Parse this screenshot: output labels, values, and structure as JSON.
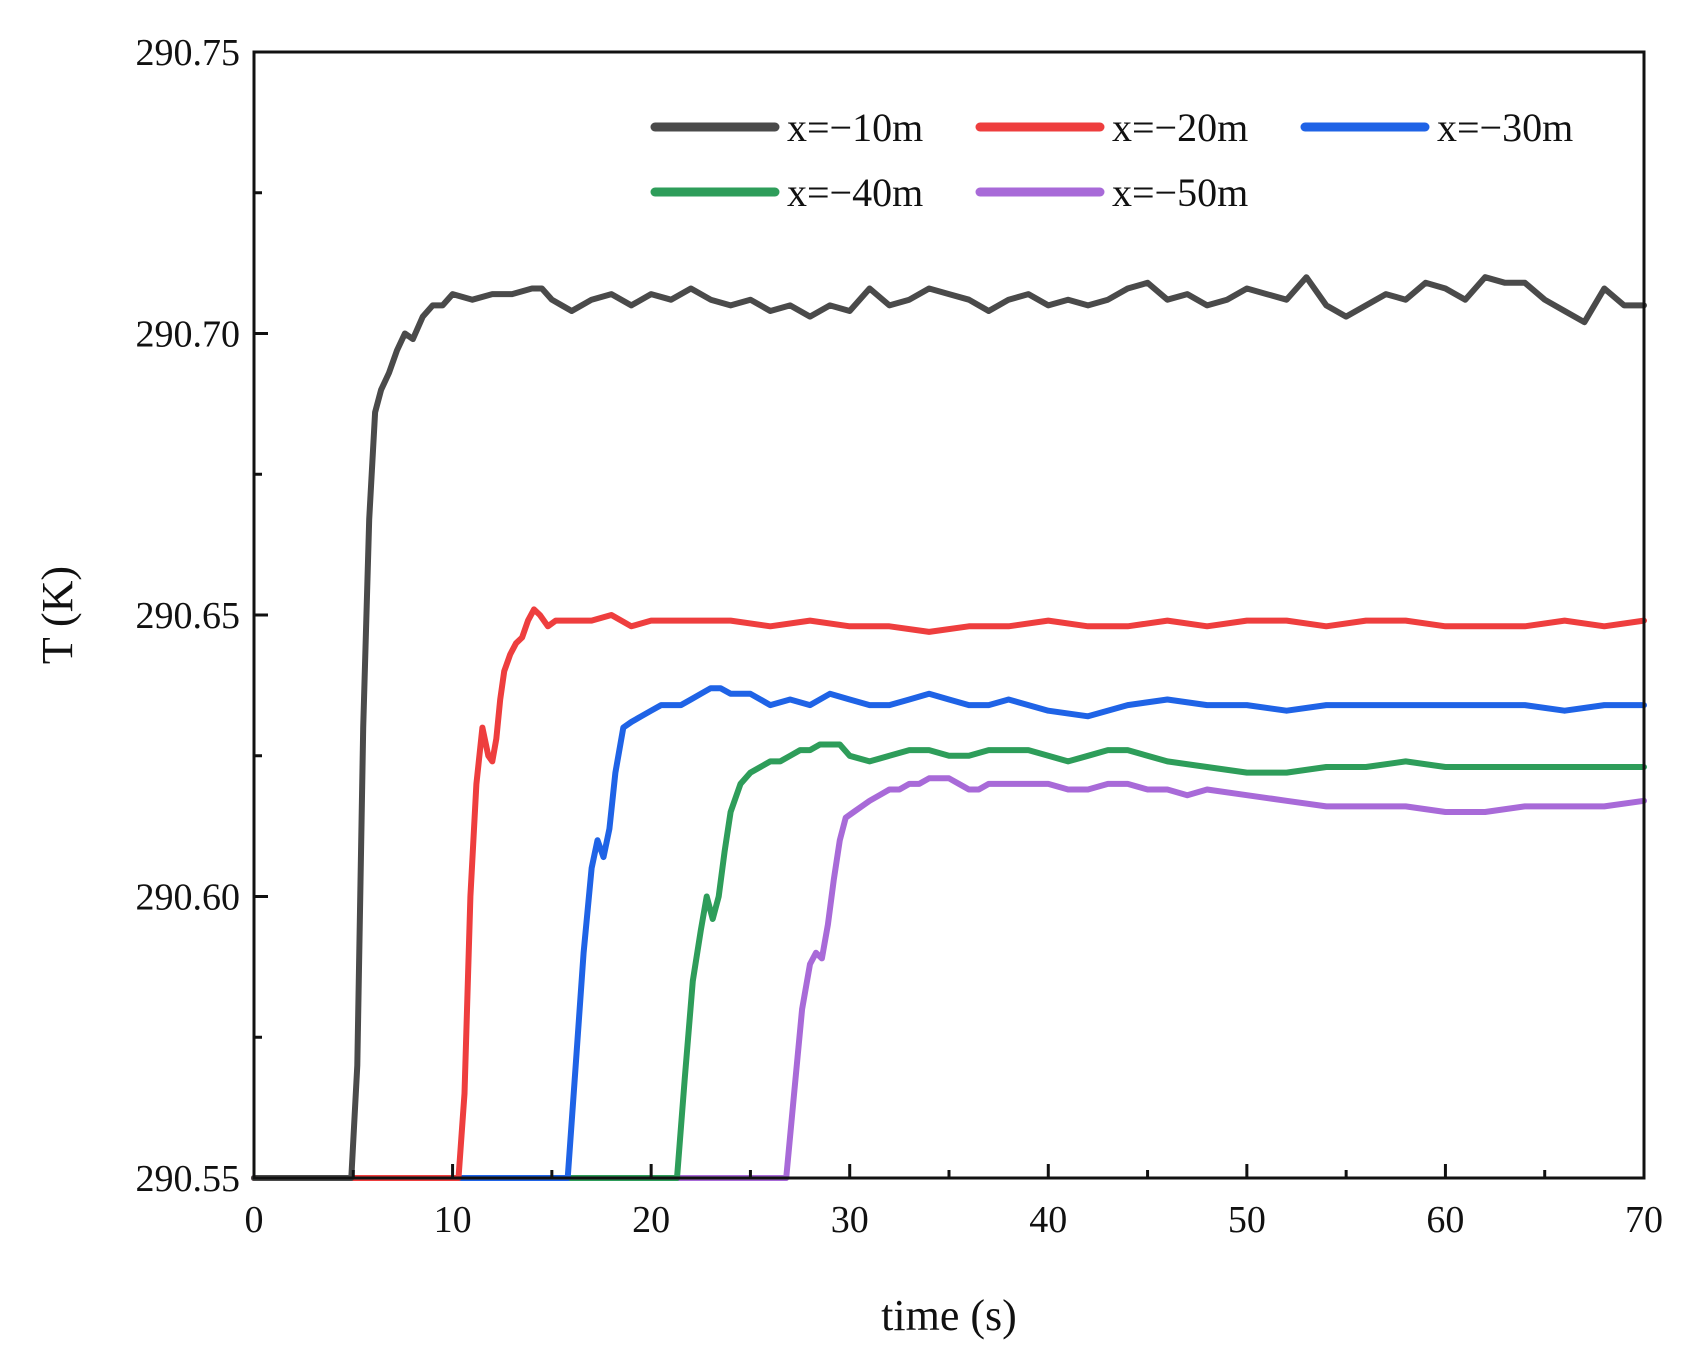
{
  "chart_data": {
    "type": "line",
    "title": "",
    "xlabel": "time (s)",
    "ylabel": "T (K)",
    "xlim": [
      0,
      70
    ],
    "ylim": [
      290.55,
      290.75
    ],
    "xticks": [
      0,
      10,
      20,
      30,
      40,
      50,
      60,
      70
    ],
    "yticks": [
      290.55,
      290.6,
      290.65,
      290.7,
      290.75
    ],
    "xtick_labels": [
      "0",
      "10",
      "20",
      "30",
      "40",
      "50",
      "60",
      "70"
    ],
    "ytick_labels": [
      "290.55",
      "290.60",
      "290.65",
      "290.70",
      "290.75"
    ],
    "grid": false,
    "legend_position": "top-right",
    "series": [
      {
        "name": "x=−10m",
        "color": "#4a4a4a",
        "x": [
          0,
          4.9,
          5.2,
          5.5,
          5.8,
          6.1,
          6.4,
          6.8,
          7.2,
          7.6,
          8.0,
          8.5,
          9.0,
          9.5,
          10,
          11,
          12,
          13,
          14,
          14.5,
          15,
          15.5,
          16,
          17,
          18,
          19,
          20,
          21,
          22,
          23,
          24,
          25,
          26,
          27,
          28,
          29,
          30,
          31,
          32,
          33,
          34,
          35,
          36,
          37,
          38,
          39,
          40,
          41,
          42,
          43,
          44,
          45,
          46,
          47,
          48,
          49,
          50,
          51,
          52,
          53,
          54,
          55,
          56,
          57,
          58,
          59,
          60,
          61,
          62,
          63,
          64,
          65,
          66,
          67,
          68,
          69,
          70
        ],
        "y": [
          290.55,
          290.55,
          290.57,
          290.63,
          290.667,
          290.686,
          290.69,
          290.693,
          290.697,
          290.7,
          290.699,
          290.703,
          290.705,
          290.705,
          290.707,
          290.706,
          290.707,
          290.707,
          290.708,
          290.708,
          290.706,
          290.705,
          290.704,
          290.706,
          290.707,
          290.705,
          290.707,
          290.706,
          290.708,
          290.706,
          290.705,
          290.706,
          290.704,
          290.705,
          290.703,
          290.705,
          290.704,
          290.708,
          290.705,
          290.706,
          290.708,
          290.707,
          290.706,
          290.704,
          290.706,
          290.707,
          290.705,
          290.706,
          290.705,
          290.706,
          290.708,
          290.709,
          290.706,
          290.707,
          290.705,
          290.706,
          290.708,
          290.707,
          290.706,
          290.71,
          290.705,
          290.703,
          290.705,
          290.707,
          290.706,
          290.709,
          290.708,
          290.706,
          290.71,
          290.709,
          290.709,
          290.706,
          290.704,
          290.702,
          290.708,
          290.705,
          290.705
        ]
      },
      {
        "name": "x=−20m",
        "color": "#ee3e3e",
        "x": [
          0,
          10.3,
          10.6,
          10.9,
          11.2,
          11.5,
          11.8,
          12.0,
          12.2,
          12.4,
          12.6,
          12.9,
          13.2,
          13.5,
          13.8,
          14.1,
          14.4,
          14.8,
          15.2,
          16,
          17,
          18,
          19,
          20,
          22,
          24,
          26,
          28,
          30,
          32,
          34,
          36,
          38,
          40,
          42,
          44,
          46,
          48,
          50,
          52,
          54,
          56,
          58,
          60,
          62,
          64,
          66,
          68,
          70
        ],
        "y": [
          290.55,
          290.55,
          290.565,
          290.6,
          290.62,
          290.63,
          290.625,
          290.624,
          290.628,
          290.635,
          290.64,
          290.643,
          290.645,
          290.646,
          290.649,
          290.651,
          290.65,
          290.648,
          290.649,
          290.649,
          290.649,
          290.65,
          290.648,
          290.649,
          290.649,
          290.649,
          290.648,
          290.649,
          290.648,
          290.648,
          290.647,
          290.648,
          290.648,
          290.649,
          290.648,
          290.648,
          290.649,
          290.648,
          290.649,
          290.649,
          290.648,
          290.649,
          290.649,
          290.648,
          290.648,
          290.648,
          290.649,
          290.648,
          290.649
        ]
      },
      {
        "name": "x=−30m",
        "color": "#1f63e6",
        "x": [
          0,
          15.8,
          16.2,
          16.6,
          17.0,
          17.3,
          17.6,
          17.9,
          18.2,
          18.6,
          19.0,
          19.5,
          20,
          20.5,
          21,
          21.5,
          22,
          22.5,
          23,
          23.5,
          24,
          25,
          26,
          27,
          28,
          29,
          30,
          31,
          32,
          33,
          34,
          35,
          36,
          37,
          38,
          40,
          42,
          44,
          46,
          48,
          50,
          52,
          54,
          56,
          58,
          60,
          62,
          64,
          66,
          68,
          70
        ],
        "y": [
          290.55,
          290.55,
          290.57,
          290.59,
          290.605,
          290.61,
          290.607,
          290.612,
          290.622,
          290.63,
          290.631,
          290.632,
          290.633,
          290.634,
          290.634,
          290.634,
          290.635,
          290.636,
          290.637,
          290.637,
          290.636,
          290.636,
          290.634,
          290.635,
          290.634,
          290.636,
          290.635,
          290.634,
          290.634,
          290.635,
          290.636,
          290.635,
          290.634,
          290.634,
          290.635,
          290.633,
          290.632,
          290.634,
          290.635,
          290.634,
          290.634,
          290.633,
          290.634,
          290.634,
          290.634,
          290.634,
          290.634,
          290.634,
          290.633,
          290.634,
          290.634
        ]
      },
      {
        "name": "x=−40m",
        "color": "#2e9d5a",
        "x": [
          0,
          21.3,
          21.7,
          22.1,
          22.5,
          22.8,
          23.1,
          23.4,
          23.7,
          24.0,
          24.5,
          25,
          25.5,
          26,
          26.5,
          27,
          27.5,
          28,
          28.5,
          29,
          29.5,
          30,
          31,
          32,
          33,
          34,
          35,
          36,
          37,
          38,
          39,
          40,
          41,
          42,
          43,
          44,
          46,
          48,
          50,
          52,
          54,
          56,
          58,
          60,
          62,
          64,
          66,
          68,
          70
        ],
        "y": [
          290.55,
          290.55,
          290.568,
          290.585,
          290.594,
          290.6,
          290.596,
          290.6,
          290.608,
          290.615,
          290.62,
          290.622,
          290.623,
          290.624,
          290.624,
          290.625,
          290.626,
          290.626,
          290.627,
          290.627,
          290.627,
          290.625,
          290.624,
          290.625,
          290.626,
          290.626,
          290.625,
          290.625,
          290.626,
          290.626,
          290.626,
          290.625,
          290.624,
          290.625,
          290.626,
          290.626,
          290.624,
          290.623,
          290.622,
          290.622,
          290.623,
          290.623,
          290.624,
          290.623,
          290.623,
          290.623,
          290.623,
          290.623,
          290.623
        ]
      },
      {
        "name": "x=−50m",
        "color": "#a86ad8",
        "x": [
          0,
          26.8,
          27.2,
          27.6,
          28.0,
          28.3,
          28.6,
          28.9,
          29.2,
          29.5,
          29.8,
          30.2,
          30.6,
          31,
          31.5,
          32,
          32.5,
          33,
          33.5,
          34,
          34.5,
          35,
          35.5,
          36,
          36.5,
          37,
          37.5,
          38,
          39,
          40,
          41,
          42,
          43,
          44,
          45,
          46,
          47,
          48,
          50,
          52,
          54,
          56,
          58,
          60,
          62,
          64,
          66,
          68,
          70
        ],
        "y": [
          290.55,
          290.55,
          290.565,
          290.58,
          290.588,
          290.59,
          290.589,
          290.595,
          290.603,
          290.61,
          290.614,
          290.615,
          290.616,
          290.617,
          290.618,
          290.619,
          290.619,
          290.62,
          290.62,
          290.621,
          290.621,
          290.621,
          290.62,
          290.619,
          290.619,
          290.62,
          290.62,
          290.62,
          290.62,
          290.62,
          290.619,
          290.619,
          290.62,
          290.62,
          290.619,
          290.619,
          290.618,
          290.619,
          290.618,
          290.617,
          290.616,
          290.616,
          290.616,
          290.615,
          290.615,
          290.616,
          290.616,
          290.616,
          290.617
        ]
      }
    ]
  }
}
